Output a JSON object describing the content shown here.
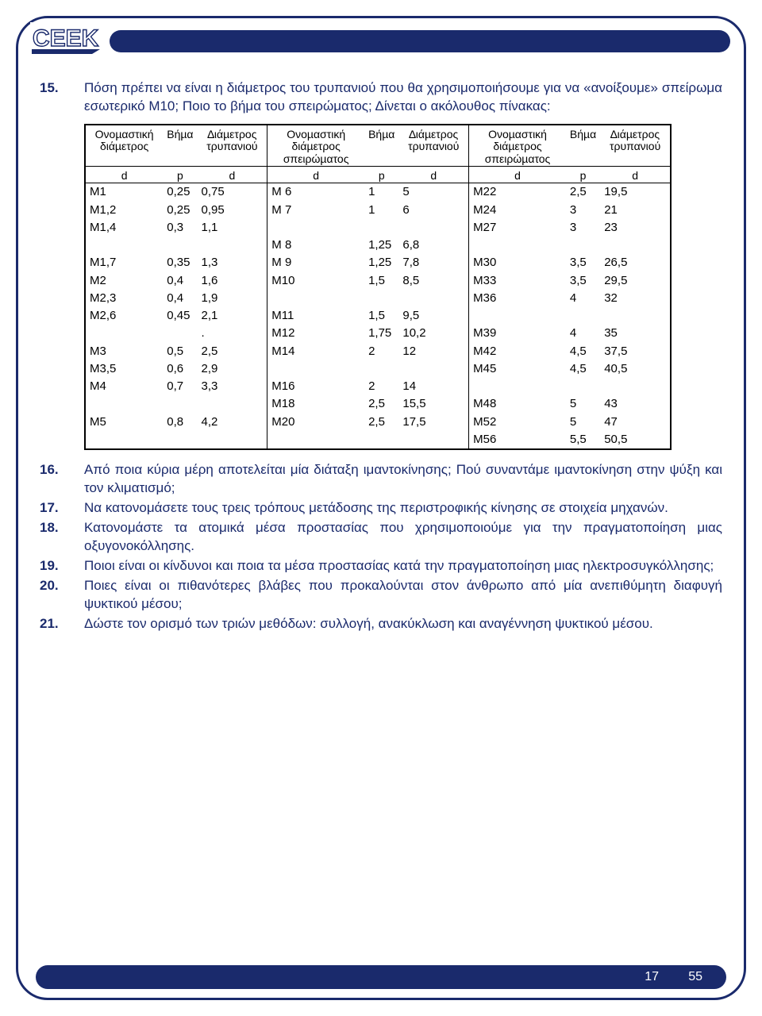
{
  "colors": {
    "brand": "#1a2a6c",
    "text": "#1a2a6c",
    "tableText": "#000000",
    "bg": "#ffffff"
  },
  "typography": {
    "body_fontsize_pt": 13,
    "table_fontsize_pt": 11,
    "font_family": "Arial"
  },
  "questions": {
    "q15": {
      "num": "15.",
      "text": "Πόση πρέπει να είναι η διάμετρος του τρυπανιού που θα χρησιμοποιήσουμε για να «ανοίξουμε» σπείρωμα εσωτερικό Μ10; Ποιο το βήμα του σπειρώματος; Δίνεται ο ακόλουθος πίνακας:"
    },
    "q16": {
      "num": "16.",
      "text": "Από ποια κύρια μέρη αποτελείται μία διάταξη ιμαντοκίνησης; Πού συναντάμε ιμαντοκίνηση στην ψύξη και τον κλιματισμό;"
    },
    "q17": {
      "num": "17.",
      "text": "Να κατονομάσετε τους τρεις τρόπους μετάδοσης της περιστροφικής κίνησης σε στοιχεία μηχανών."
    },
    "q18": {
      "num": "18.",
      "text": "Κατονομάστε τα ατομικά μέσα προστασίας που χρησιμοποιούμε για την πραγματοποίηση μιας οξυγονοκόλλησης."
    },
    "q19": {
      "num": "19.",
      "text": "Ποιοι είναι οι κίνδυνοι και ποια τα μέσα προστασίας κατά την πραγματοποίηση μιας ηλεκτροσυγκόλλησης;"
    },
    "q20": {
      "num": "20.",
      "text": "Ποιες είναι οι πιθανότερες βλάβες που προκαλούνται στον άνθρωπο από μία ανεπιθύμητη διαφυγή ψυκτικού μέσου;"
    },
    "q21": {
      "num": "21.",
      "text": "Δώστε τον ορισμό των τριών μεθόδων: συλλογή, ανακύκλωση και αναγέννηση ψυκτικού μέσου."
    }
  },
  "table": {
    "type": "table",
    "border_color": "#000000",
    "text_color": "#000000",
    "headers": {
      "h1": "Ονοµαστική διάµετρος",
      "h2": "Βήµα",
      "h3": "∆ιάµετρος τρυπανιού",
      "h4": "Ονοµαστική διάµετρος σπειρώµατος",
      "h5": "Βήµα",
      "h6": "∆ιάµετρος τρυπανιού",
      "h7": "Ονοµαστική διάµετρος σπειρώµατος",
      "h8": "Βήµα",
      "h9": "∆ιάµετρος τρυπανιού",
      "s1": "d",
      "s2": "p",
      "s3": "d",
      "s4": "d",
      "s5": "p",
      "s6": "d",
      "s7": "d",
      "s8": "p",
      "s9": "d"
    },
    "rows": [
      [
        "M1",
        "0,25",
        "0,75",
        "M 6",
        "1",
        "5",
        "M22",
        "2,5",
        "19,5"
      ],
      [
        "M1,2",
        "0,25",
        "0,95",
        "M 7",
        "1",
        "6",
        "M24",
        "3",
        "21"
      ],
      [
        "M1,4",
        "0,3",
        "1,1",
        "",
        "",
        "",
        "M27",
        "3",
        "23"
      ],
      [
        "",
        "",
        "",
        "M 8",
        "1,25",
        "6,8",
        "",
        "",
        ""
      ],
      [
        "M1,7",
        "0,35",
        "1,3",
        "M 9",
        "1,25",
        "7,8",
        "M30",
        "3,5",
        "26,5"
      ],
      [
        "M2",
        "0,4",
        "1,6",
        "M10",
        "1,5",
        "8,5",
        "M33",
        "3,5",
        "29,5"
      ],
      [
        "M2,3",
        "0,4",
        "1,9",
        "",
        "",
        "",
        "M36",
        "4",
        "32"
      ],
      [
        "M2,6",
        "0,45",
        "2,1",
        "M11",
        "1,5",
        "9,5",
        "",
        "",
        ""
      ],
      [
        "",
        "",
        ".",
        "M12",
        "1,75",
        "10,2",
        "M39",
        "4",
        "35"
      ],
      [
        "M3",
        "0,5",
        "2,5",
        "M14",
        "2",
        "12",
        "M42",
        "4,5",
        "37,5"
      ],
      [
        "M3,5",
        "0,6",
        "2,9",
        "",
        "",
        "",
        "M45",
        "4,5",
        "40,5"
      ],
      [
        "M4",
        "0,7",
        "3,3",
        "M16",
        "2",
        "14",
        "",
        "",
        ""
      ],
      [
        "",
        "",
        "",
        "M18",
        "2,5",
        "15,5",
        "M48",
        "5",
        "43"
      ],
      [
        "M5",
        "0,8",
        "4,2",
        "M20",
        "2,5",
        "17,5",
        "M52",
        "5",
        "47"
      ],
      [
        "",
        "",
        "",
        "",
        "",
        "",
        "M56",
        "5,5",
        "50,5"
      ]
    ]
  },
  "footer": {
    "page": "17",
    "total": "55"
  }
}
